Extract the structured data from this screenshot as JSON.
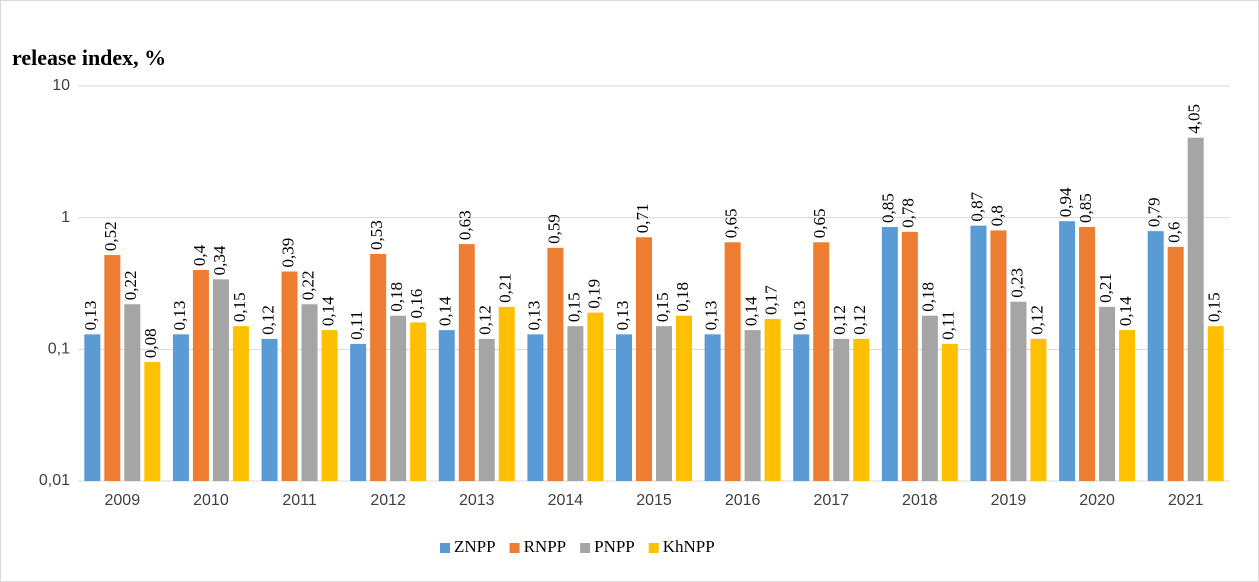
{
  "chart_data": {
    "type": "bar",
    "title": "release index, %",
    "categories": [
      "2009",
      "2010",
      "2011",
      "2012",
      "2013",
      "2014",
      "2015",
      "2016",
      "2017",
      "2018",
      "2019",
      "2020",
      "2021"
    ],
    "series": [
      {
        "name": "ZNPP",
        "color": "#5b9bd5",
        "values": [
          0.13,
          0.13,
          0.12,
          0.11,
          0.14,
          0.13,
          0.13,
          0.13,
          0.13,
          0.85,
          0.87,
          0.94,
          0.79
        ],
        "value_labels": [
          "0,13",
          "0,13",
          "0,12",
          "0,11",
          "0,14",
          "0,13",
          "0,13",
          "0,13",
          "0,13",
          "0,85",
          "0,87",
          "0,94",
          "0,79"
        ]
      },
      {
        "name": "RNPP",
        "color": "#ed7d31",
        "values": [
          0.52,
          0.4,
          0.39,
          0.53,
          0.63,
          0.59,
          0.71,
          0.65,
          0.65,
          0.78,
          0.8,
          0.85,
          0.6
        ],
        "value_labels": [
          "0,52",
          "0,4",
          "0,39",
          "0,53",
          "0,63",
          "0,59",
          "0,71",
          "0,65",
          "0,65",
          "0,78",
          "0,8",
          "0,85",
          "0,6"
        ]
      },
      {
        "name": "PNPP",
        "color": "#a5a5a5",
        "values": [
          0.22,
          0.34,
          0.22,
          0.18,
          0.12,
          0.15,
          0.15,
          0.14,
          0.12,
          0.18,
          0.23,
          0.21,
          4.05
        ],
        "value_labels": [
          "0,22",
          "0,34",
          "0,22",
          "0,18",
          "0,12",
          "0,15",
          "0,15",
          "0,14",
          "0,12",
          "0,18",
          "0,23",
          "0,21",
          "4,05"
        ]
      },
      {
        "name": "KhNPP",
        "color": "#ffc000",
        "values": [
          0.08,
          0.15,
          0.14,
          0.16,
          0.21,
          0.19,
          0.18,
          0.17,
          0.12,
          0.11,
          0.12,
          0.14,
          0.15
        ],
        "value_labels": [
          "0,08",
          "0,15",
          "0,14",
          "0,16",
          "0,21",
          "0,19",
          "0,18",
          "0,17",
          "0,12",
          "0,11",
          "0,12",
          "0,14",
          "0,15"
        ]
      }
    ],
    "log_scale": true,
    "ylim": [
      0.01,
      10
    ],
    "yticks": [
      {
        "value": 0.01,
        "label": "0,01"
      },
      {
        "value": 0.1,
        "label": "0,1"
      },
      1,
      10
    ],
    "grid": true,
    "legend": "bottom"
  }
}
